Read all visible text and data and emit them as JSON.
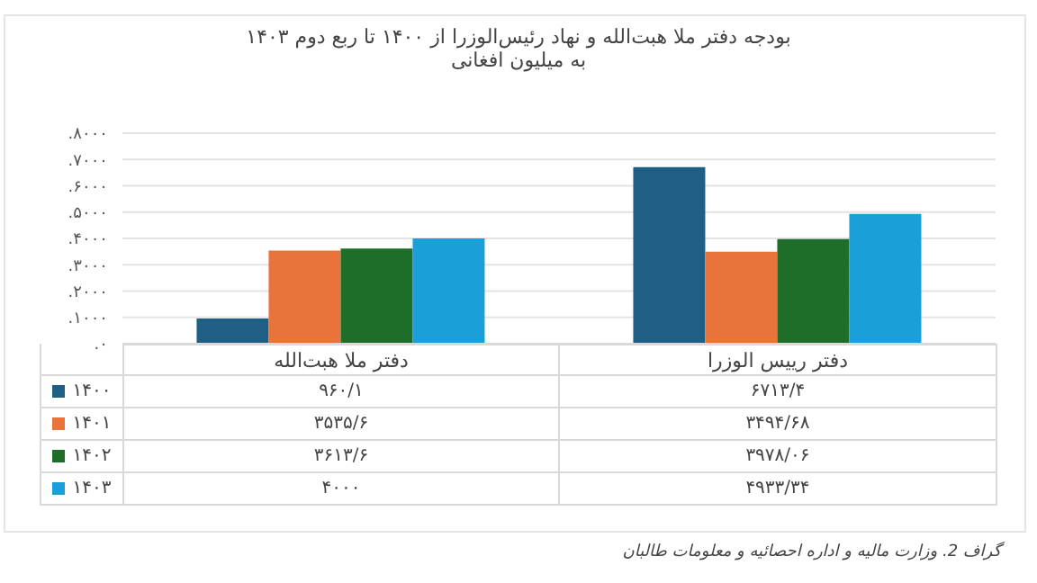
{
  "chart_data": {
    "type": "bar",
    "title": "بودجه دفتر ملا هبت‌الله و نهاد رئیس‌الوزرا از ۱۴۰۰ تا ربع دوم ۱۴۰۳",
    "subtitle": "به میلیون افغانی",
    "categories": [
      "دفتر ملا هبت‌الله",
      "دفتر رییس الوزرا"
    ],
    "series": [
      {
        "name": "۱۴۰۰",
        "color": "#1f5f86",
        "values": [
          960.1,
          6713.4
        ],
        "value_labels": [
          "۹۶۰/۱",
          "۶۷۱۳/۴"
        ]
      },
      {
        "name": "۱۴۰۱",
        "color": "#e8743b",
        "values": [
          3535.6,
          3494.68
        ],
        "value_labels": [
          "۳۵۳۵/۶",
          "۳۴۹۴/۶۸"
        ]
      },
      {
        "name": "۱۴۰۲",
        "color": "#1e6e2a",
        "values": [
          3613.6,
          3978.06
        ],
        "value_labels": [
          "۳۶۱۳/۶",
          "۳۹۷۸/۰۶"
        ]
      },
      {
        "name": "۱۴۰۳",
        "color": "#1a9fd8",
        "values": [
          4000,
          4933.34
        ],
        "value_labels": [
          "۴۰۰۰",
          "۴۹۳۳/۳۴"
        ]
      }
    ],
    "ylim": [
      0,
      8000
    ],
    "yticks": [
      {
        "value": 0,
        "label": "۰."
      },
      {
        "value": 1000,
        "label": "۱۰۰۰."
      },
      {
        "value": 2000,
        "label": "۲۰۰۰."
      },
      {
        "value": 3000,
        "label": "۳۰۰۰."
      },
      {
        "value": 4000,
        "label": "۴۰۰۰."
      },
      {
        "value": 5000,
        "label": "۵۰۰۰."
      },
      {
        "value": 6000,
        "label": "۶۰۰۰."
      },
      {
        "value": 7000,
        "label": "۷۰۰۰."
      },
      {
        "value": 8000,
        "label": "۸۰۰۰."
      }
    ],
    "grid": "y",
    "legend": "bottom left",
    "annotations": [
      "گراف 2.  وزارت مالیه و اداره احصائیه و معلومات طالبان"
    ]
  }
}
